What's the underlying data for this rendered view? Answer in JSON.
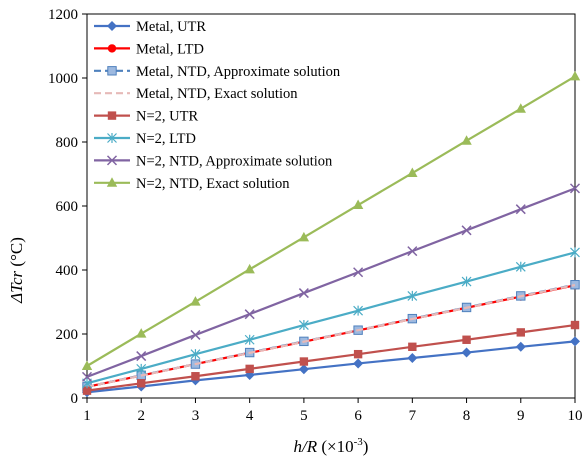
{
  "chart_data": {
    "type": "line",
    "x": [
      1,
      2,
      3,
      4,
      5,
      6,
      7,
      8,
      9,
      10
    ],
    "x_ticks": [
      "1",
      "2",
      "3",
      "4",
      "5",
      "6",
      "7",
      "8",
      "9",
      "10"
    ],
    "y_ticks": [
      "0",
      "200",
      "400",
      "600",
      "800",
      "1000",
      "1200"
    ],
    "xlim": [
      1,
      10
    ],
    "ylim": [
      0,
      1200
    ],
    "xlabel": {
      "main": "h/R",
      "unit": " (×10",
      "exp": "-3",
      "close": ")"
    },
    "ylabel": {
      "main": "ΔTcr",
      "unit": " (°C)"
    },
    "grid": false,
    "legend_position": "top-left",
    "series": [
      {
        "name": "Metal, UTR",
        "color": "#4472C4",
        "marker": "diamond",
        "dash": "solid",
        "values": [
          18,
          36,
          55,
          72,
          90,
          108,
          125,
          142,
          160,
          177
        ]
      },
      {
        "name": "Metal, LTD",
        "color": "#FF0000",
        "marker": "circle",
        "dash": "solid",
        "values": [
          35,
          70,
          106,
          141,
          176,
          211,
          247,
          282,
          317,
          352
        ]
      },
      {
        "name": "Metal, NTD, Approximate solution",
        "color": "#4F81BD",
        "marker": "square-light",
        "dash": "dash",
        "values": [
          35,
          71,
          106,
          142,
          177,
          212,
          248,
          283,
          319,
          354
        ]
      },
      {
        "name": "Metal, NTD, Exact solution",
        "color": "#E6B9B8",
        "marker": "none",
        "dash": "dash",
        "values": [
          35,
          70,
          106,
          141,
          176,
          212,
          247,
          282,
          318,
          353
        ]
      },
      {
        "name": "N=2, UTR",
        "color": "#C0504D",
        "marker": "square",
        "dash": "solid",
        "values": [
          23,
          46,
          68,
          91,
          114,
          137,
          160,
          182,
          205,
          228
        ]
      },
      {
        "name": "N=2, LTD",
        "color": "#4BACC6",
        "marker": "asterisk",
        "dash": "solid",
        "values": [
          46,
          91,
          137,
          182,
          228,
          273,
          319,
          364,
          410,
          455
        ]
      },
      {
        "name": "N=2, NTD, Approximate solution",
        "color": "#8064A2",
        "marker": "x",
        "dash": "solid",
        "values": [
          66,
          131,
          197,
          262,
          328,
          393,
          459,
          524,
          590,
          655
        ]
      },
      {
        "name": "N=2, NTD, Exact solution",
        "color": "#9BBB59",
        "marker": "triangle",
        "dash": "solid",
        "values": [
          100,
          201,
          301,
          402,
          502,
          603,
          703,
          804,
          904,
          1005
        ]
      }
    ]
  }
}
